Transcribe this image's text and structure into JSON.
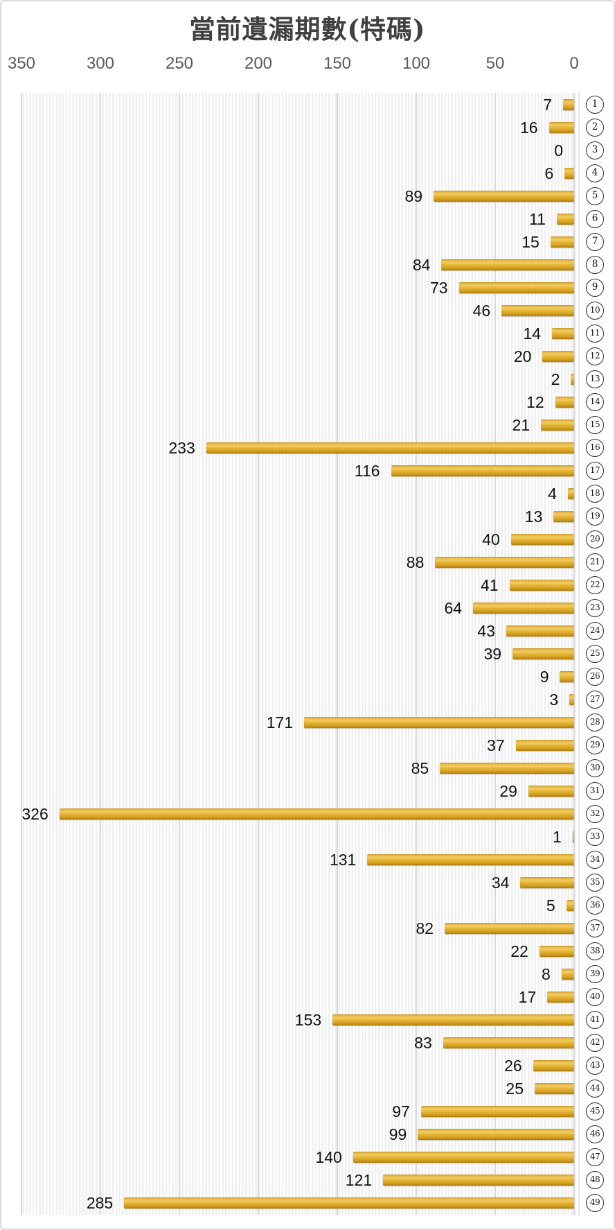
{
  "title": "當前遺漏期數(特碼)",
  "colors": {
    "bar": "#E0AE2C",
    "title_text": "#404040",
    "axis_text": "#595959",
    "gridline": "#D8D8D8",
    "plot_stripe": "#EFEFEF",
    "frame_border": "#D9D9D9",
    "value_text": "#111111"
  },
  "chart_data": {
    "type": "bar",
    "orientation": "horizontal",
    "title": "當前遺漏期數(特碼)",
    "category_label_style": "circled-number",
    "categories": [
      1,
      2,
      3,
      4,
      5,
      6,
      7,
      8,
      9,
      10,
      11,
      12,
      13,
      14,
      15,
      16,
      17,
      18,
      19,
      20,
      21,
      22,
      23,
      24,
      25,
      26,
      27,
      28,
      29,
      30,
      31,
      32,
      33,
      34,
      35,
      36,
      37,
      38,
      39,
      40,
      41,
      42,
      43,
      44,
      45,
      46,
      47,
      48,
      49
    ],
    "values": [
      7,
      16,
      0,
      6,
      89,
      11,
      15,
      84,
      73,
      46,
      14,
      20,
      2,
      12,
      21,
      233,
      116,
      4,
      13,
      40,
      88,
      41,
      64,
      43,
      39,
      9,
      3,
      171,
      37,
      85,
      29,
      326,
      1,
      131,
      34,
      5,
      82,
      22,
      8,
      17,
      153,
      83,
      26,
      25,
      97,
      99,
      140,
      121,
      285
    ],
    "value_labels_shown": true,
    "xlabel": "",
    "ylabel": "",
    "axis_ticks": [
      350,
      300,
      250,
      200,
      150,
      100,
      50,
      0
    ],
    "xlim": [
      350,
      0
    ],
    "axis_position": "top",
    "axis_reversed": true,
    "grid": "vertical",
    "legend": "none",
    "bar_color": "#E0AE2C"
  }
}
